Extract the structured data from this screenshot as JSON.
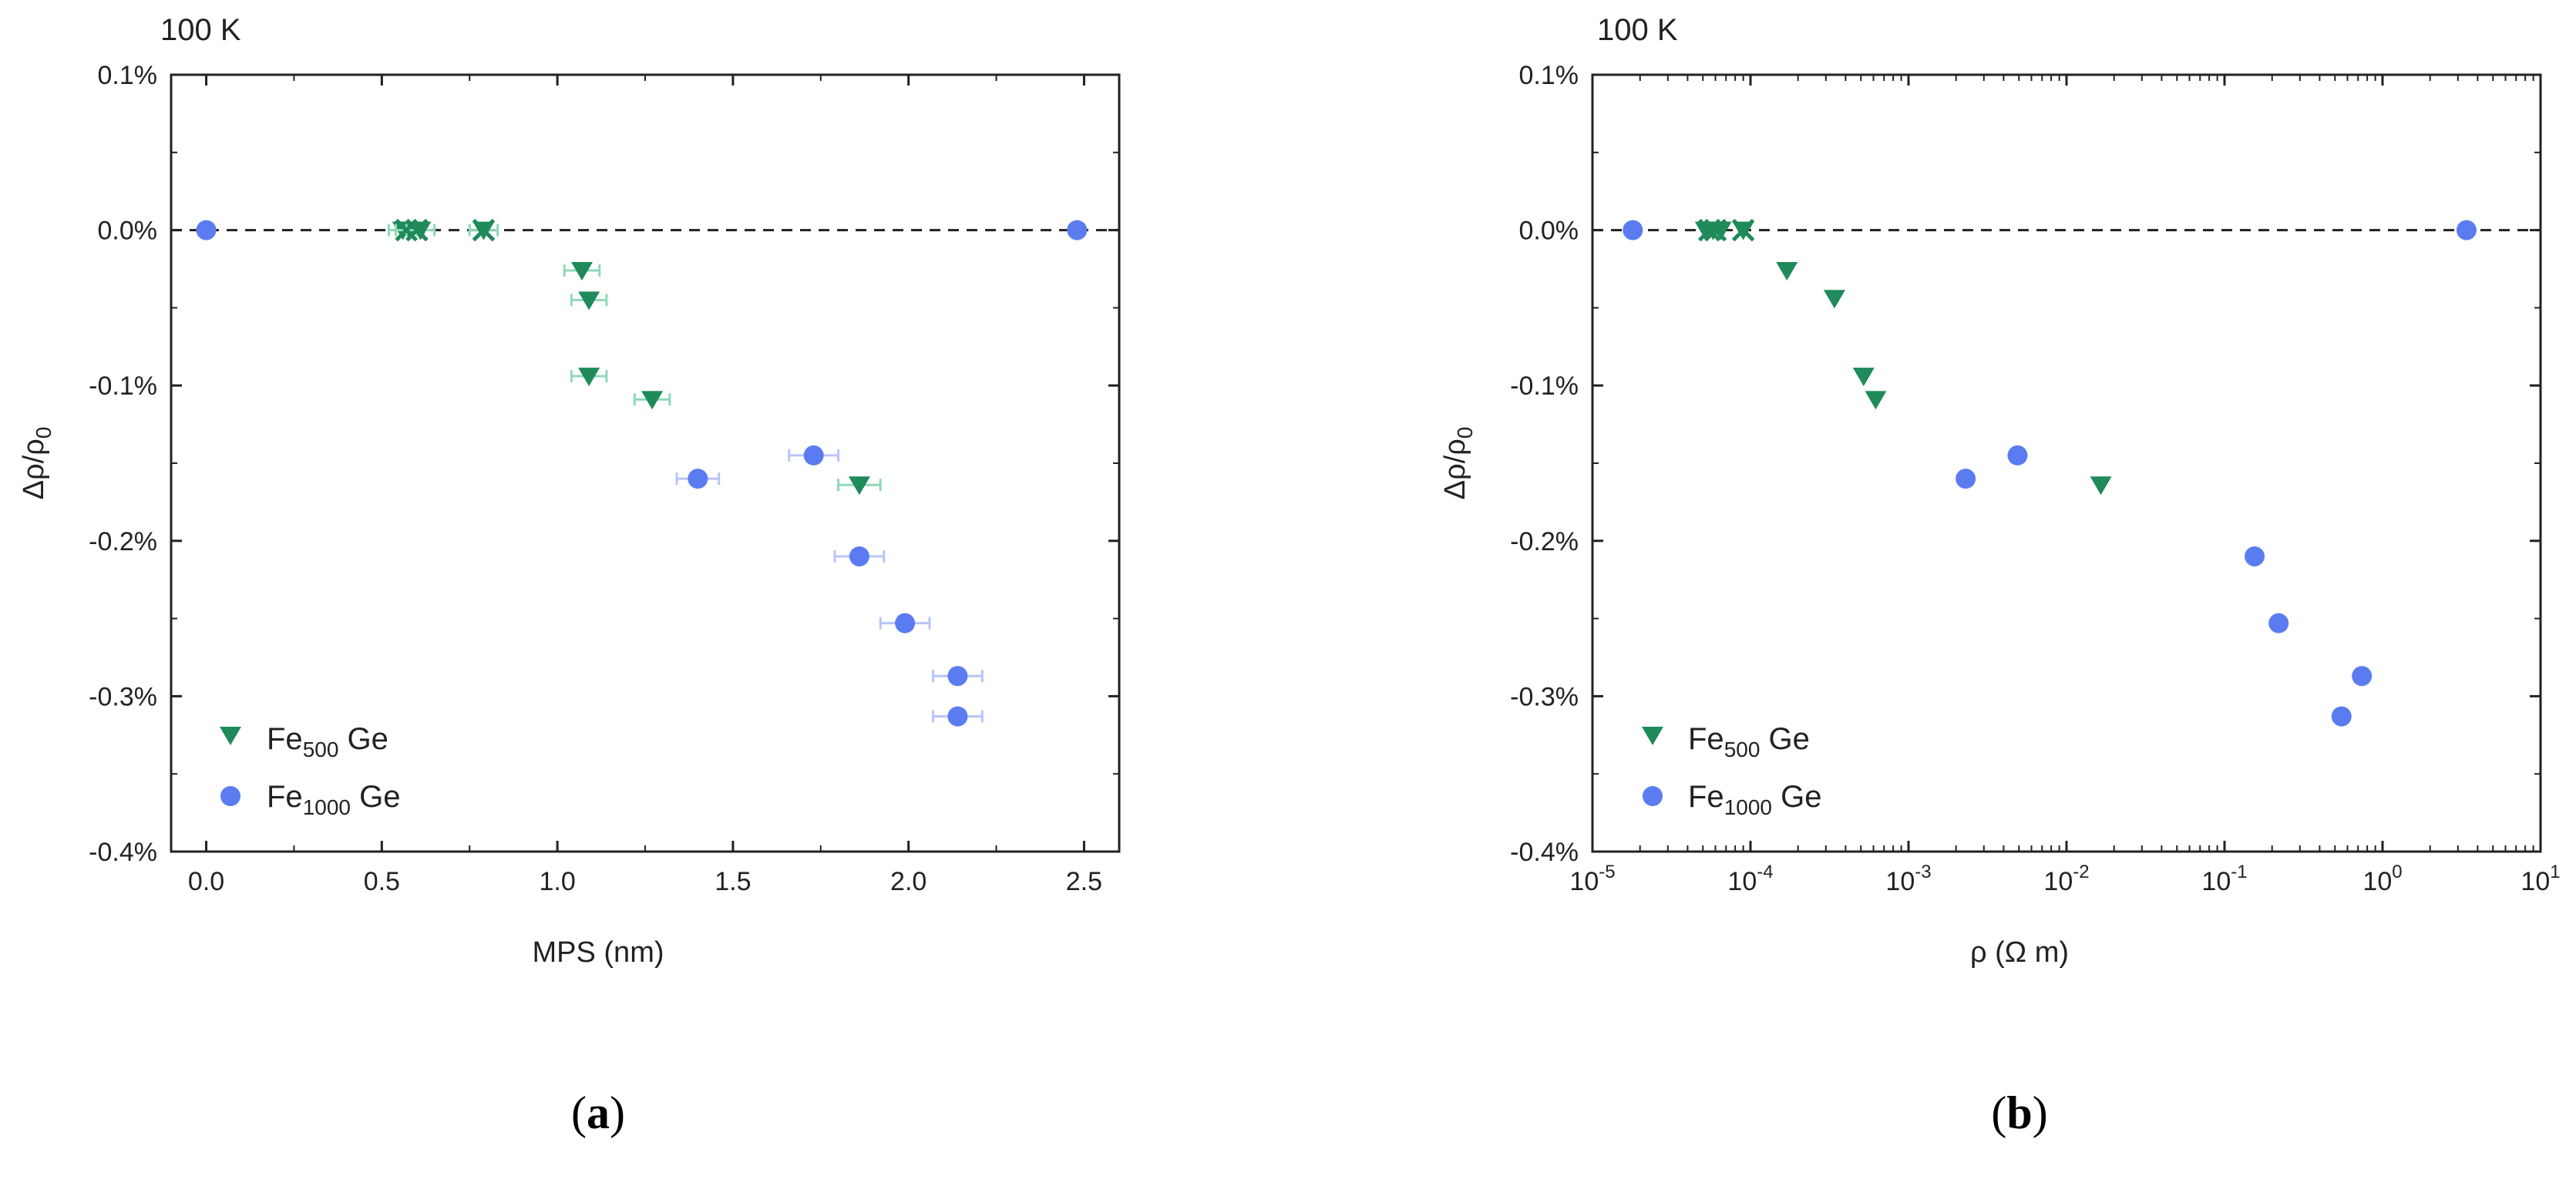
{
  "colors": {
    "fe500": "#1f8a5a",
    "fe1000": "#5b7cf0",
    "fe500_err": "#8fd8b8",
    "fe1000_err": "#b8c4f8",
    "axis": "#222222"
  },
  "legend": [
    {
      "name": "Fe500 Ge",
      "main": "Fe",
      "sub": "500",
      "rest": " Ge",
      "marker": "triangle-down"
    },
    {
      "name": "Fe1000 Ge",
      "main": "Fe",
      "sub": "1000",
      "rest": " Ge",
      "marker": "circle"
    }
  ],
  "chart_data": [
    {
      "panel": "a",
      "type": "scatter",
      "corner_label": "100 K",
      "caption": {
        "open": "(",
        "letter": "a",
        "close": ")"
      },
      "xlabel": "MPS (nm)",
      "ylabel": {
        "text": "Δρ/ρ",
        "sub": "0"
      },
      "xscale": "linear",
      "xlim": [
        -0.1,
        2.6
      ],
      "ylim": [
        -0.4,
        0.1
      ],
      "xticks": [
        {
          "v": 0.0,
          "label": "0.0"
        },
        {
          "v": 0.5,
          "label": "0.5"
        },
        {
          "v": 1.0,
          "label": "1.0"
        },
        {
          "v": 1.5,
          "label": "1.5"
        },
        {
          "v": 2.0,
          "label": "2.0"
        },
        {
          "v": 2.5,
          "label": "2.5"
        }
      ],
      "yticks": [
        {
          "v": 0.1,
          "label": "0.1%"
        },
        {
          "v": 0.0,
          "label": "0.0%"
        },
        {
          "v": -0.1,
          "label": "-0.1%"
        },
        {
          "v": -0.2,
          "label": "-0.2%"
        },
        {
          "v": -0.3,
          "label": "-0.3%"
        },
        {
          "v": -0.4,
          "label": "-0.4%"
        }
      ],
      "reference_line_y": 0.0,
      "series": [
        {
          "name": "Fe500 Ge",
          "marker": "triangle-down",
          "points": [
            {
              "x": 0.56,
              "y": 0.0,
              "xerr": 0.04
            },
            {
              "x": 0.58,
              "y": 0.0,
              "xerr": 0.04
            },
            {
              "x": 0.61,
              "y": 0.0,
              "xerr": 0.04
            },
            {
              "x": 0.79,
              "y": 0.0,
              "xerr": 0.04
            },
            {
              "x": 1.07,
              "y": -0.026,
              "xerr": 0.05
            },
            {
              "x": 1.09,
              "y": -0.045,
              "xerr": 0.05
            },
            {
              "x": 1.09,
              "y": -0.094,
              "xerr": 0.05
            },
            {
              "x": 1.27,
              "y": -0.109,
              "xerr": 0.05
            },
            {
              "x": 1.86,
              "y": -0.164,
              "xerr": 0.06
            }
          ]
        },
        {
          "name": "Fe1000 Ge",
          "marker": "circle",
          "points": [
            {
              "x": 0.0,
              "y": 0.0,
              "xerr": 0.0
            },
            {
              "x": 1.4,
              "y": -0.16,
              "xerr": 0.06
            },
            {
              "x": 1.73,
              "y": -0.145,
              "xerr": 0.07
            },
            {
              "x": 1.86,
              "y": -0.21,
              "xerr": 0.07
            },
            {
              "x": 1.99,
              "y": -0.253,
              "xerr": 0.07
            },
            {
              "x": 2.14,
              "y": -0.287,
              "xerr": 0.07
            },
            {
              "x": 2.14,
              "y": -0.313,
              "xerr": 0.07
            },
            {
              "x": 2.48,
              "y": 0.0,
              "xerr": 0.0
            }
          ]
        }
      ],
      "overlap_markers": [
        {
          "x": 0.57,
          "y": 0.0
        },
        {
          "x": 0.6,
          "y": 0.0
        },
        {
          "x": 0.79,
          "y": 0.0
        }
      ]
    },
    {
      "panel": "b",
      "type": "scatter",
      "corner_label": "100 K",
      "caption": {
        "open": "(",
        "letter": "b",
        "close": ")"
      },
      "xlabel": "ρ (Ω m)",
      "ylabel": {
        "text": "Δρ/ρ",
        "sub": "0"
      },
      "xscale": "log",
      "xlim": [
        1e-05,
        10
      ],
      "ylim": [
        -0.4,
        0.1
      ],
      "xticks": [
        {
          "v": 1e-05,
          "base": "10",
          "exp": "-5"
        },
        {
          "v": 0.0001,
          "base": "10",
          "exp": "-4"
        },
        {
          "v": 0.001,
          "base": "10",
          "exp": "-3"
        },
        {
          "v": 0.01,
          "base": "10",
          "exp": "-2"
        },
        {
          "v": 0.1,
          "base": "10",
          "exp": "-1"
        },
        {
          "v": 1,
          "base": "10",
          "exp": "0"
        },
        {
          "v": 10,
          "base": "10",
          "exp": "1"
        }
      ],
      "yticks": [
        {
          "v": 0.1,
          "label": "0.1%"
        },
        {
          "v": 0.0,
          "label": "0.0%"
        },
        {
          "v": -0.1,
          "label": "-0.1%"
        },
        {
          "v": -0.2,
          "label": "-0.2%"
        },
        {
          "v": -0.3,
          "label": "-0.3%"
        },
        {
          "v": -0.4,
          "label": "-0.4%"
        }
      ],
      "reference_line_y": 0.0,
      "series": [
        {
          "name": "Fe500 Ge",
          "marker": "triangle-down",
          "points": [
            {
              "x": 5.2e-05,
              "y": 0.0
            },
            {
              "x": 5.8e-05,
              "y": 0.0
            },
            {
              "x": 6.5e-05,
              "y": 0.0
            },
            {
              "x": 9e-05,
              "y": 0.0
            },
            {
              "x": 0.00017,
              "y": -0.026
            },
            {
              "x": 0.00034,
              "y": -0.044
            },
            {
              "x": 0.00052,
              "y": -0.094
            },
            {
              "x": 0.00062,
              "y": -0.109
            },
            {
              "x": 0.0165,
              "y": -0.164
            }
          ]
        },
        {
          "name": "Fe1000 Ge",
          "marker": "circle",
          "points": [
            {
              "x": 1.8e-05,
              "y": 0.0
            },
            {
              "x": 0.0023,
              "y": -0.16
            },
            {
              "x": 0.0049,
              "y": -0.145
            },
            {
              "x": 0.155,
              "y": -0.21
            },
            {
              "x": 0.22,
              "y": -0.253
            },
            {
              "x": 0.74,
              "y": -0.287
            },
            {
              "x": 0.55,
              "y": -0.313
            },
            {
              "x": 3.4,
              "y": 0.0
            }
          ]
        }
      ],
      "overlap_markers": [
        {
          "x": 5.5e-05,
          "y": 0.0
        },
        {
          "x": 6e-05,
          "y": 0.0
        },
        {
          "x": 9e-05,
          "y": 0.0
        }
      ]
    }
  ]
}
